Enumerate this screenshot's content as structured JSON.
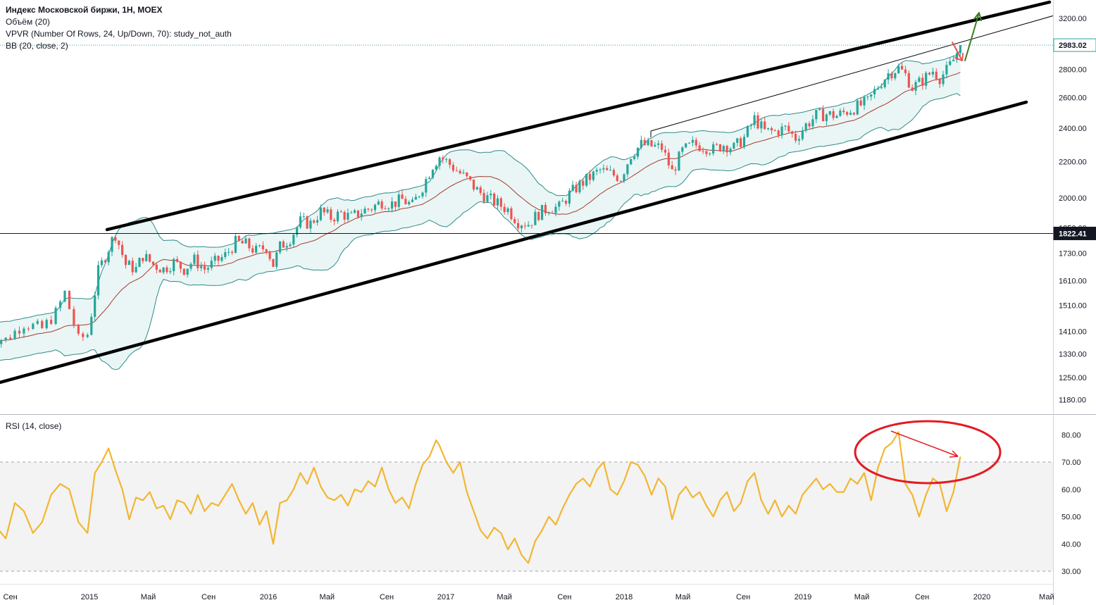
{
  "legend": {
    "title": "Индекс Московской биржи, 1Н, MOEX",
    "line2": "Объём (20)",
    "line3": "VPVR (Number Of Rows, 24, Up/Down, 70): study_not_auth",
    "line4": "BB (20, close, 2)",
    "rsi": "RSI (14, close)"
  },
  "colors": {
    "up": "#26a69a",
    "down": "#ef5350",
    "bb_fill": "#e9f6f5",
    "bb_band": "#2e8b8b",
    "bb_basis": "#a83a2e",
    "rsi_line": "#f2b631",
    "rsi_band": "#f3f3f3",
    "circle": "#e31b23",
    "green_arrow": "#3a7d22",
    "channel": "#000000",
    "price_tag_dark": "#131722"
  },
  "chart_data": [
    {
      "type": "candlestick",
      "title": "Индекс Московской биржи, 1Н, MOEX",
      "x_ticks": [
        "Сен",
        "2015",
        "Май",
        "Сен",
        "2016",
        "Май",
        "Сен",
        "2017",
        "Май",
        "Сен",
        "2018",
        "Май",
        "Сен",
        "2019",
        "Май",
        "Сен",
        "2020",
        "Май"
      ],
      "y_ticks": [
        1180,
        1250,
        1330,
        1410,
        1510,
        1610,
        1730,
        1850,
        2000,
        2200,
        2400,
        2600,
        2800,
        3200
      ],
      "y_tick_labels": [
        "1180.00",
        "1250.00",
        "1330.00",
        "1410.00",
        "1510.00",
        "1610.00",
        "1730.00",
        "1850.00",
        "2000.00",
        "2200.00",
        "2400.00",
        "2600.00",
        "2800.00",
        "3200.00"
      ],
      "price_tags": [
        {
          "label": "2983.02",
          "value": 2983.02,
          "style": "light"
        },
        {
          "label": "1822.41",
          "value": 1822.41,
          "style": "dark"
        }
      ],
      "scale": "log",
      "x_range": [
        "2014-07-20",
        "2020-06-15"
      ],
      "y_range": [
        1130,
        3300
      ],
      "close_path": [
        [
          "2014-07-28",
          1390
        ],
        [
          "2014-08-25",
          1380
        ],
        [
          "2014-09-22",
          1440
        ],
        [
          "2014-10-20",
          1420
        ],
        [
          "2014-11-10",
          1480
        ],
        [
          "2014-11-24",
          1560
        ],
        [
          "2014-12-15",
          1380
        ],
        [
          "2014-12-29",
          1400
        ],
        [
          "2015-01-19",
          1650
        ],
        [
          "2015-02-16",
          1790
        ],
        [
          "2015-02-23",
          1820
        ],
        [
          "2015-03-16",
          1680
        ],
        [
          "2015-04-06",
          1660
        ],
        [
          "2015-04-20",
          1720
        ],
        [
          "2015-05-11",
          1680
        ],
        [
          "2015-06-01",
          1660
        ],
        [
          "2015-06-22",
          1690
        ],
        [
          "2015-07-13",
          1660
        ],
        [
          "2015-08-03",
          1700
        ],
        [
          "2015-08-24",
          1660
        ],
        [
          "2015-09-14",
          1690
        ],
        [
          "2015-10-05",
          1720
        ],
        [
          "2015-10-26",
          1780
        ],
        [
          "2015-11-16",
          1770
        ],
        [
          "2015-12-07",
          1740
        ],
        [
          "2015-12-28",
          1760
        ],
        [
          "2016-01-11",
          1680
        ],
        [
          "2016-01-25",
          1760
        ],
        [
          "2016-02-15",
          1800
        ],
        [
          "2016-03-07",
          1880
        ],
        [
          "2016-03-28",
          1870
        ],
        [
          "2016-04-18",
          1930
        ],
        [
          "2016-05-09",
          1900
        ],
        [
          "2016-05-30",
          1920
        ],
        [
          "2016-06-20",
          1900
        ],
        [
          "2016-07-11",
          1930
        ],
        [
          "2016-08-01",
          1950
        ],
        [
          "2016-08-22",
          1980
        ],
        [
          "2016-09-12",
          1970
        ],
        [
          "2016-10-03",
          1990
        ],
        [
          "2016-10-24",
          1960
        ],
        [
          "2016-11-14",
          2060
        ],
        [
          "2016-12-05",
          2180
        ],
        [
          "2016-12-19",
          2230
        ],
        [
          "2017-01-02",
          2200
        ],
        [
          "2017-01-23",
          2150
        ],
        [
          "2017-02-13",
          2100
        ],
        [
          "2017-03-06",
          2040
        ],
        [
          "2017-03-27",
          2000
        ],
        [
          "2017-04-17",
          1970
        ],
        [
          "2017-05-08",
          1940
        ],
        [
          "2017-05-29",
          1880
        ],
        [
          "2017-06-19",
          1870
        ],
        [
          "2017-07-10",
          1920
        ],
        [
          "2017-07-31",
          1950
        ],
        [
          "2017-08-21",
          1950
        ],
        [
          "2017-09-11",
          2020
        ],
        [
          "2017-10-02",
          2070
        ],
        [
          "2017-10-23",
          2110
        ],
        [
          "2017-11-13",
          2150
        ],
        [
          "2017-12-04",
          2130
        ],
        [
          "2017-12-25",
          2110
        ],
        [
          "2018-01-15",
          2240
        ],
        [
          "2018-02-05",
          2300
        ],
        [
          "2018-02-26",
          2290
        ],
        [
          "2018-03-19",
          2280
        ],
        [
          "2018-04-09",
          2140
        ],
        [
          "2018-04-30",
          2260
        ],
        [
          "2018-05-21",
          2300
        ],
        [
          "2018-06-11",
          2290
        ],
        [
          "2018-07-02",
          2270
        ],
        [
          "2018-07-23",
          2300
        ],
        [
          "2018-08-13",
          2280
        ],
        [
          "2018-09-03",
          2340
        ],
        [
          "2018-09-24",
          2460
        ],
        [
          "2018-10-15",
          2380
        ],
        [
          "2018-11-05",
          2380
        ],
        [
          "2018-11-26",
          2400
        ],
        [
          "2018-12-17",
          2340
        ],
        [
          "2019-01-07",
          2420
        ],
        [
          "2019-01-28",
          2480
        ],
        [
          "2019-02-18",
          2490
        ],
        [
          "2019-03-11",
          2480
        ],
        [
          "2019-04-01",
          2510
        ],
        [
          "2019-04-22",
          2540
        ],
        [
          "2019-05-13",
          2570
        ],
        [
          "2019-06-03",
          2680
        ],
        [
          "2019-06-24",
          2770
        ],
        [
          "2019-07-15",
          2810
        ],
        [
          "2019-07-29",
          2760
        ],
        [
          "2019-08-12",
          2670
        ],
        [
          "2019-09-02",
          2720
        ],
        [
          "2019-09-23",
          2790
        ],
        [
          "2019-10-07",
          2740
        ],
        [
          "2019-10-21",
          2790
        ],
        [
          "2019-11-04",
          2870
        ],
        [
          "2019-11-18",
          2983
        ]
      ]
    },
    {
      "type": "line",
      "title": "RSI (14, close)",
      "x_range": [
        "2014-07-20",
        "2020-06-15"
      ],
      "y_range": [
        26,
        87
      ],
      "y_ticks": [
        30,
        40,
        50,
        60,
        70,
        80
      ],
      "y_tick_labels": [
        "30.00",
        "40.00",
        "50.00",
        "60.00",
        "70.00",
        "80.00"
      ],
      "band": [
        30,
        70
      ],
      "series": [
        {
          "points": [
            [
              "2014-07-28",
              58
            ],
            [
              "2014-08-11",
              46
            ],
            [
              "2014-08-25",
              42
            ],
            [
              "2014-09-08",
              55
            ],
            [
              "2014-09-22",
              52
            ],
            [
              "2014-10-06",
              44
            ],
            [
              "2014-10-20",
              48
            ],
            [
              "2014-11-03",
              58
            ],
            [
              "2014-11-17",
              62
            ],
            [
              "2014-12-01",
              60
            ],
            [
              "2014-12-15",
              48
            ],
            [
              "2014-12-29",
              44
            ],
            [
              "2015-01-12",
              66
            ],
            [
              "2015-01-26",
              70
            ],
            [
              "2015-02-09",
              75
            ],
            [
              "2015-02-23",
              67
            ],
            [
              "2015-03-09",
              60
            ],
            [
              "2015-03-23",
              49
            ],
            [
              "2015-04-06",
              57
            ],
            [
              "2015-04-20",
              56
            ],
            [
              "2015-05-04",
              59
            ],
            [
              "2015-05-18",
              53
            ],
            [
              "2015-06-01",
              54
            ],
            [
              "2015-06-15",
              49
            ],
            [
              "2015-06-29",
              56
            ],
            [
              "2015-07-13",
              55
            ],
            [
              "2015-07-27",
              51
            ],
            [
              "2015-08-10",
              58
            ],
            [
              "2015-08-24",
              52
            ],
            [
              "2015-09-07",
              55
            ],
            [
              "2015-09-21",
              54
            ],
            [
              "2015-10-05",
              58
            ],
            [
              "2015-10-19",
              62
            ],
            [
              "2015-11-02",
              56
            ],
            [
              "2015-11-16",
              51
            ],
            [
              "2015-11-30",
              55
            ],
            [
              "2015-12-14",
              47
            ],
            [
              "2015-12-28",
              52
            ],
            [
              "2016-01-11",
              40
            ],
            [
              "2016-01-25",
              55
            ],
            [
              "2016-02-08",
              56
            ],
            [
              "2016-02-22",
              60
            ],
            [
              "2016-03-07",
              66
            ],
            [
              "2016-03-21",
              62
            ],
            [
              "2016-04-04",
              68
            ],
            [
              "2016-04-18",
              61
            ],
            [
              "2016-05-02",
              57
            ],
            [
              "2016-05-16",
              56
            ],
            [
              "2016-05-30",
              58
            ],
            [
              "2016-06-13",
              54
            ],
            [
              "2016-06-27",
              60
            ],
            [
              "2016-07-11",
              59
            ],
            [
              "2016-07-25",
              63
            ],
            [
              "2016-08-08",
              61
            ],
            [
              "2016-08-22",
              68
            ],
            [
              "2016-09-05",
              60
            ],
            [
              "2016-09-19",
              55
            ],
            [
              "2016-10-03",
              57
            ],
            [
              "2016-10-17",
              53
            ],
            [
              "2016-10-31",
              62
            ],
            [
              "2016-11-14",
              69
            ],
            [
              "2016-11-28",
              72
            ],
            [
              "2016-12-12",
              78
            ],
            [
              "2016-12-19",
              76
            ],
            [
              "2017-01-02",
              70
            ],
            [
              "2017-01-16",
              66
            ],
            [
              "2017-01-30",
              70
            ],
            [
              "2017-02-13",
              59
            ],
            [
              "2017-02-27",
              52
            ],
            [
              "2017-03-13",
              45
            ],
            [
              "2017-03-27",
              42
            ],
            [
              "2017-04-10",
              46
            ],
            [
              "2017-04-24",
              44
            ],
            [
              "2017-05-08",
              38
            ],
            [
              "2017-05-22",
              42
            ],
            [
              "2017-06-05",
              36
            ],
            [
              "2017-06-19",
              33
            ],
            [
              "2017-07-03",
              41
            ],
            [
              "2017-07-17",
              45
            ],
            [
              "2017-07-31",
              50
            ],
            [
              "2017-08-14",
              47
            ],
            [
              "2017-08-28",
              53
            ],
            [
              "2017-09-11",
              58
            ],
            [
              "2017-09-25",
              62
            ],
            [
              "2017-10-09",
              64
            ],
            [
              "2017-10-23",
              61
            ],
            [
              "2017-11-06",
              67
            ],
            [
              "2017-11-20",
              70
            ],
            [
              "2017-12-04",
              60
            ],
            [
              "2017-12-18",
              58
            ],
            [
              "2018-01-01",
              63
            ],
            [
              "2018-01-15",
              70
            ],
            [
              "2018-01-29",
              69
            ],
            [
              "2018-02-12",
              65
            ],
            [
              "2018-02-26",
              58
            ],
            [
              "2018-03-12",
              64
            ],
            [
              "2018-03-26",
              61
            ],
            [
              "2018-04-09",
              49
            ],
            [
              "2018-04-23",
              58
            ],
            [
              "2018-05-07",
              61
            ],
            [
              "2018-05-21",
              57
            ],
            [
              "2018-06-04",
              59
            ],
            [
              "2018-06-18",
              54
            ],
            [
              "2018-07-02",
              50
            ],
            [
              "2018-07-16",
              56
            ],
            [
              "2018-07-30",
              59
            ],
            [
              "2018-08-13",
              52
            ],
            [
              "2018-08-27",
              55
            ],
            [
              "2018-09-10",
              63
            ],
            [
              "2018-09-24",
              66
            ],
            [
              "2018-10-08",
              56
            ],
            [
              "2018-10-22",
              51
            ],
            [
              "2018-11-05",
              56
            ],
            [
              "2018-11-19",
              50
            ],
            [
              "2018-12-03",
              54
            ],
            [
              "2018-12-17",
              51
            ],
            [
              "2018-12-31",
              58
            ],
            [
              "2019-01-14",
              61
            ],
            [
              "2019-01-28",
              64
            ],
            [
              "2019-02-11",
              60
            ],
            [
              "2019-02-25",
              62
            ],
            [
              "2019-03-11",
              59
            ],
            [
              "2019-03-25",
              59
            ],
            [
              "2019-04-08",
              64
            ],
            [
              "2019-04-22",
              62
            ],
            [
              "2019-05-06",
              66
            ],
            [
              "2019-05-20",
              56
            ],
            [
              "2019-06-03",
              68
            ],
            [
              "2019-06-17",
              75
            ],
            [
              "2019-07-01",
              77
            ],
            [
              "2019-07-15",
              81
            ],
            [
              "2019-07-29",
              62
            ],
            [
              "2019-08-12",
              58
            ],
            [
              "2019-08-26",
              50
            ],
            [
              "2019-09-09",
              58
            ],
            [
              "2019-09-23",
              64
            ],
            [
              "2019-10-07",
              62
            ],
            [
              "2019-10-21",
              52
            ],
            [
              "2019-11-04",
              59
            ],
            [
              "2019-11-18",
              72
            ]
          ]
        }
      ]
    }
  ]
}
